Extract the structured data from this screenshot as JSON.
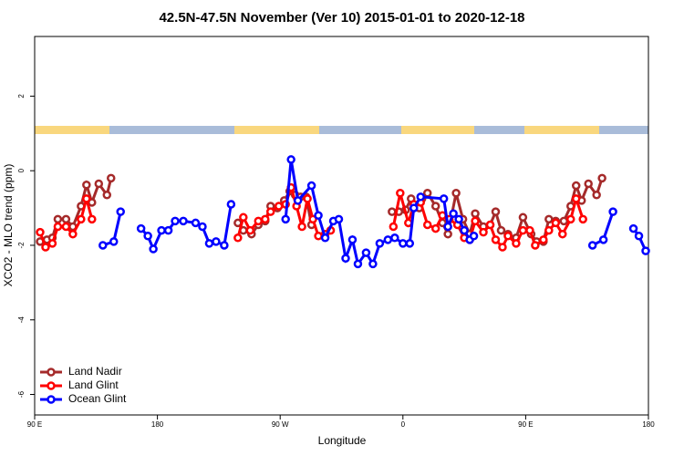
{
  "chart_data": {
    "type": "line",
    "title": "42.5N-47.5N November (Ver 10)   2015-01-01 to 2020-12-18",
    "x_label": "Longitude",
    "y_label": "XCO2 - MLO trend (ppm)",
    "xlim": [
      90,
      540
    ],
    "xticks": [
      {
        "value": 90,
        "label": "90 E"
      },
      180,
      {
        "value": 270,
        "label": "90 W"
      },
      {
        "value": 360,
        "label": "0"
      },
      {
        "value": 450,
        "label": "90 E"
      },
      180
    ],
    "ylim": [
      -6.55,
      3.6
    ],
    "yticks": [
      -6,
      -4,
      -2,
      0,
      2
    ],
    "legend": "bottom-left",
    "series": [
      {
        "name": "Land Nadir",
        "color": "#a52a2a",
        "x": [
          94,
          99,
          103,
          107,
          113,
          118,
          124,
          128,
          132,
          137,
          143,
          146,
          null,
          239,
          243,
          249,
          254,
          259,
          263,
          268,
          273,
          277,
          281,
          285,
          289,
          293,
          null,
          352,
          357,
          362,
          366,
          372,
          374,
          378,
          384,
          389,
          393,
          399,
          404,
          409,
          413,
          419,
          424,
          428,
          432,
          437,
          443,
          448,
          454,
          458,
          463,
          467,
          472,
          478,
          483,
          487,
          491,
          496,
          502,
          506
        ],
        "values": [
          -1.9,
          -1.85,
          -1.8,
          -1.3,
          -1.3,
          -1.5,
          -0.95,
          -0.38,
          -0.85,
          -0.35,
          -0.65,
          -0.2,
          null,
          -1.4,
          -1.6,
          -1.7,
          -1.45,
          -1.35,
          -0.95,
          -1.0,
          -0.8,
          -0.55,
          -0.65,
          -0.7,
          -0.7,
          -1.45,
          null,
          -1.1,
          -1.1,
          -1.05,
          -0.75,
          -1.0,
          -0.75,
          -0.6,
          -0.95,
          -1.4,
          -1.7,
          -0.6,
          -1.3,
          -1.7,
          -1.15,
          -1.5,
          -1.45,
          -1.1,
          -1.6,
          -1.7,
          -1.8,
          -1.25,
          -1.7,
          -1.9,
          -1.9,
          -1.3,
          -1.35,
          -1.35,
          -0.95,
          -0.4,
          -0.8,
          -0.35,
          -0.65,
          -0.2
        ]
      },
      {
        "name": "Land Glint",
        "color": "#ff0000",
        "x": [
          94,
          98,
          103,
          107,
          113,
          118,
          124,
          128,
          132,
          null,
          239,
          243,
          248,
          254,
          259,
          263,
          269,
          274,
          278,
          282,
          286,
          290,
          294,
          298,
          303,
          307,
          null,
          353,
          358,
          364,
          368,
          373,
          378,
          384,
          389,
          394,
          400,
          405,
          409,
          413,
          419,
          424,
          428,
          433,
          437,
          443,
          448,
          453,
          457,
          463,
          467,
          472,
          477,
          483,
          487,
          492
        ],
        "values": [
          -1.65,
          -2.05,
          -1.95,
          -1.5,
          -1.5,
          -1.7,
          -1.3,
          -0.75,
          -1.3,
          null,
          -1.8,
          -1.25,
          -1.6,
          -1.35,
          -1.3,
          -1.1,
          -0.95,
          -0.9,
          -0.45,
          -0.95,
          -1.5,
          -0.75,
          -1.3,
          -1.75,
          -1.7,
          -1.6,
          null,
          -1.5,
          -0.6,
          -1.4,
          -0.9,
          -0.85,
          -1.45,
          -1.55,
          -1.2,
          -1.3,
          -1.45,
          -1.8,
          -1.85,
          -1.35,
          -1.65,
          -1.45,
          -1.85,
          -2.05,
          -1.75,
          -1.95,
          -1.6,
          -1.6,
          -2.0,
          -1.85,
          -1.6,
          -1.4,
          -1.7,
          -1.3,
          -0.75,
          -1.3
        ]
      },
      {
        "name": "Ocean Glint",
        "color": "#0000ff",
        "x": [
          140,
          148,
          153,
          null,
          168,
          173,
          177,
          183,
          188,
          193,
          199,
          208,
          213,
          218,
          223,
          229,
          234,
          null,
          274,
          278,
          283,
          293,
          298,
          303,
          309,
          313,
          318,
          323,
          327,
          333,
          338,
          343,
          349,
          354,
          360,
          365,
          368,
          373,
          390,
          393,
          397,
          401,
          405,
          409,
          412,
          null,
          499,
          507,
          514,
          null,
          529,
          533,
          538
        ],
        "values": [
          -2.0,
          -1.9,
          -1.1,
          null,
          -1.55,
          -1.75,
          -2.1,
          -1.6,
          -1.6,
          -1.35,
          -1.35,
          -1.4,
          -1.5,
          -1.95,
          -1.9,
          -2.0,
          -0.9,
          null,
          -1.3,
          0.3,
          -0.8,
          -0.4,
          -1.2,
          -1.8,
          -1.35,
          -1.3,
          -2.35,
          -1.85,
          -2.5,
          -2.2,
          -2.5,
          -1.95,
          -1.85,
          -1.8,
          -1.95,
          -1.95,
          -1.0,
          -0.7,
          -0.75,
          -1.5,
          -1.15,
          -1.3,
          -1.6,
          -1.85,
          -1.75,
          null,
          -2.0,
          -1.85,
          -1.1,
          null,
          -1.55,
          -1.75,
          -2.15
        ]
      }
    ]
  }
}
